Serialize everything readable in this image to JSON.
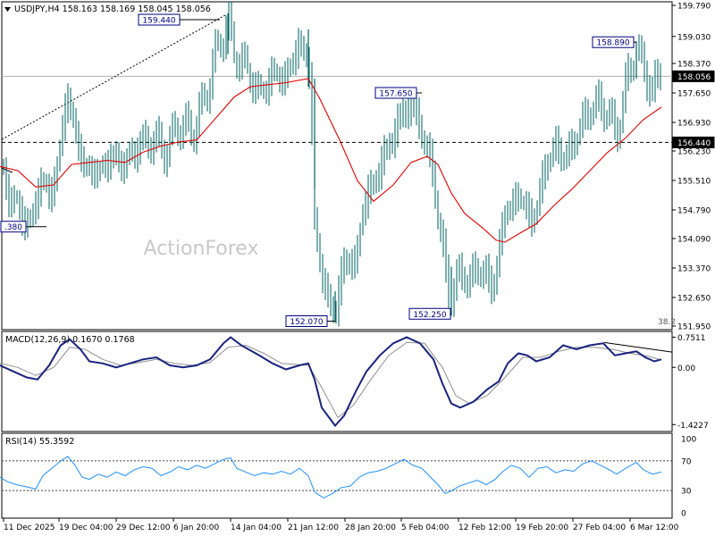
{
  "chart_data": {
    "type": "candlestick",
    "symbol_header": "USDJPY,H4  158.163 158.169 158.045 158.056",
    "watermark": "ActionForex",
    "colors": {
      "candles": "#006060",
      "ma": "#e00000",
      "macd_main": "#1a237e",
      "macd_signal": "#909090",
      "rsi": "#1e90ff",
      "grid": "#888888",
      "price_tag_bg": "#000080"
    },
    "price_axis": {
      "range": [
        151.95,
        159.79
      ],
      "ticks": [
        "159.790",
        "159.030",
        "158.370",
        "157.650",
        "156.930",
        "156.230",
        "155.510",
        "154.790",
        "154.090",
        "153.370",
        "152.650",
        "151.950"
      ],
      "current": "158.056",
      "current_value": 158.056,
      "level_line_label": "156.440",
      "level_line_value": 156.44
    },
    "annotations": [
      {
        "label": "159.440",
        "value": 159.44,
        "at": "14 Jan"
      },
      {
        "label": "158.890",
        "value": 158.89,
        "at": "5 Mar"
      },
      {
        "label": "157.650",
        "value": 157.65,
        "at": "5 Feb"
      },
      {
        "label": "152.070",
        "value": 152.07,
        "at": "23 Jan"
      },
      {
        "label": "152.250",
        "value": 152.25,
        "at": "12 Feb"
      },
      {
        "label": ".380",
        "value": 154.38,
        "at": "15 Dec"
      }
    ],
    "fib_label": "38.2",
    "trendline": {
      "from": [
        155.9,
        "11 Dec 2025"
      ],
      "to": [
        159.5,
        "14 Jan"
      ]
    },
    "x_ticks": [
      "11 Dec 2025",
      "19 Dec 04:00",
      "29 Dec 12:00",
      "6 Jan 20:00",
      "14 Jan 04:00",
      "21 Jan 12:00",
      "28 Jan 20:00",
      "5 Feb 04:00",
      "12 Feb 12:00",
      "19 Feb 20:00",
      "27 Feb 04:00",
      "6 Mar 12:00"
    ],
    "price_path": [
      [
        0,
        156.0
      ],
      [
        8,
        155.3
      ],
      [
        20,
        154.8
      ],
      [
        35,
        154.4
      ],
      [
        45,
        155.6
      ],
      [
        55,
        155.1
      ],
      [
        65,
        155.9
      ],
      [
        75,
        157.7
      ],
      [
        85,
        156.6
      ],
      [
        95,
        155.8
      ],
      [
        110,
        155.7
      ],
      [
        125,
        156.1
      ],
      [
        140,
        155.9
      ],
      [
        155,
        156.4
      ],
      [
        175,
        156.5
      ],
      [
        185,
        156.2
      ],
      [
        200,
        156.9
      ],
      [
        215,
        156.7
      ],
      [
        228,
        157.4
      ],
      [
        240,
        158.5
      ],
      [
        255,
        159.4
      ],
      [
        262,
        158.6
      ],
      [
        275,
        158.3
      ],
      [
        290,
        157.6
      ],
      [
        305,
        158.1
      ],
      [
        320,
        158.0
      ],
      [
        335,
        158.9
      ],
      [
        345,
        158.4
      ],
      [
        348,
        157.4
      ],
      [
        352,
        154.6
      ],
      [
        360,
        153.1
      ],
      [
        375,
        152.2
      ],
      [
        385,
        153.6
      ],
      [
        398,
        153.4
      ],
      [
        405,
        154.8
      ],
      [
        415,
        155.3
      ],
      [
        430,
        156.1
      ],
      [
        445,
        156.9
      ],
      [
        458,
        157.4
      ],
      [
        470,
        156.9
      ],
      [
        478,
        156.2
      ],
      [
        485,
        155.6
      ],
      [
        493,
        154.2
      ],
      [
        503,
        152.6
      ],
      [
        512,
        153.2
      ],
      [
        525,
        153.1
      ],
      [
        540,
        153.4
      ],
      [
        550,
        152.8
      ],
      [
        558,
        153.8
      ],
      [
        568,
        154.9
      ],
      [
        585,
        155.1
      ],
      [
        596,
        154.4
      ],
      [
        608,
        155.7
      ],
      [
        622,
        156.4
      ],
      [
        632,
        156.0
      ],
      [
        645,
        156.6
      ],
      [
        658,
        157.2
      ],
      [
        670,
        157.4
      ],
      [
        682,
        157.1
      ],
      [
        690,
        156.6
      ],
      [
        700,
        157.8
      ],
      [
        712,
        158.8
      ],
      [
        722,
        158.1
      ],
      [
        730,
        157.7
      ],
      [
        740,
        158.2
      ]
    ],
    "ma_path": [
      [
        0,
        155.85
      ],
      [
        20,
        155.75
      ],
      [
        40,
        155.35
      ],
      [
        60,
        155.4
      ],
      [
        80,
        155.9
      ],
      [
        100,
        155.95
      ],
      [
        120,
        156.0
      ],
      [
        140,
        155.95
      ],
      [
        160,
        156.2
      ],
      [
        180,
        156.35
      ],
      [
        200,
        156.45
      ],
      [
        220,
        156.5
      ],
      [
        240,
        157.0
      ],
      [
        262,
        157.55
      ],
      [
        280,
        157.8
      ],
      [
        300,
        157.85
      ],
      [
        320,
        157.9
      ],
      [
        345,
        158.0
      ],
      [
        358,
        157.5
      ],
      [
        380,
        156.5
      ],
      [
        400,
        155.5
      ],
      [
        418,
        155.0
      ],
      [
        440,
        155.4
      ],
      [
        460,
        155.95
      ],
      [
        478,
        156.1
      ],
      [
        490,
        155.9
      ],
      [
        505,
        155.2
      ],
      [
        520,
        154.7
      ],
      [
        540,
        154.35
      ],
      [
        555,
        154.05
      ],
      [
        565,
        154.0
      ],
      [
        580,
        154.2
      ],
      [
        600,
        154.45
      ],
      [
        620,
        154.9
      ],
      [
        640,
        155.3
      ],
      [
        660,
        155.75
      ],
      [
        680,
        156.2
      ],
      [
        700,
        156.55
      ],
      [
        720,
        157.0
      ],
      [
        740,
        157.3
      ]
    ],
    "macd": {
      "label": "MACD(12,26,9) 0.1670 0.1768",
      "range": [
        -1.55,
        0.85
      ],
      "ticks": [
        {
          "label": "0.7511",
          "value": 0.7511
        },
        {
          "label": "0.00",
          "value": 0
        },
        {
          "label": "-1.4227",
          "value": -1.4227
        }
      ],
      "main": [
        [
          0,
          0.05
        ],
        [
          15,
          -0.1
        ],
        [
          30,
          -0.25
        ],
        [
          42,
          -0.3
        ],
        [
          55,
          0.05
        ],
        [
          68,
          0.55
        ],
        [
          78,
          0.7
        ],
        [
          90,
          0.45
        ],
        [
          100,
          0.15
        ],
        [
          115,
          0.1
        ],
        [
          130,
          0.0
        ],
        [
          145,
          0.1
        ],
        [
          160,
          0.2
        ],
        [
          175,
          0.25
        ],
        [
          190,
          0.05
        ],
        [
          205,
          0.0
        ],
        [
          220,
          0.05
        ],
        [
          235,
          0.2
        ],
        [
          250,
          0.6
        ],
        [
          258,
          0.75
        ],
        [
          270,
          0.55
        ],
        [
          290,
          0.3
        ],
        [
          305,
          0.1
        ],
        [
          320,
          -0.05
        ],
        [
          335,
          0.05
        ],
        [
          345,
          0.1
        ],
        [
          352,
          -0.3
        ],
        [
          360,
          -1.0
        ],
        [
          375,
          -1.45
        ],
        [
          385,
          -1.2
        ],
        [
          398,
          -0.6
        ],
        [
          410,
          -0.1
        ],
        [
          425,
          0.3
        ],
        [
          440,
          0.6
        ],
        [
          455,
          0.75
        ],
        [
          470,
          0.6
        ],
        [
          485,
          0.2
        ],
        [
          495,
          -0.4
        ],
        [
          505,
          -0.9
        ],
        [
          515,
          -1.0
        ],
        [
          530,
          -0.85
        ],
        [
          545,
          -0.55
        ],
        [
          558,
          -0.35
        ],
        [
          568,
          0.1
        ],
        [
          580,
          0.35
        ],
        [
          590,
          0.3
        ],
        [
          600,
          0.15
        ],
        [
          615,
          0.25
        ],
        [
          630,
          0.55
        ],
        [
          645,
          0.45
        ],
        [
          660,
          0.55
        ],
        [
          675,
          0.6
        ],
        [
          688,
          0.3
        ],
        [
          700,
          0.35
        ],
        [
          712,
          0.4
        ],
        [
          722,
          0.25
        ],
        [
          732,
          0.15
        ],
        [
          740,
          0.2
        ]
      ],
      "signal": [
        [
          0,
          0.1
        ],
        [
          20,
          0.0
        ],
        [
          40,
          -0.2
        ],
        [
          60,
          0.0
        ],
        [
          78,
          0.5
        ],
        [
          95,
          0.45
        ],
        [
          115,
          0.2
        ],
        [
          135,
          0.05
        ],
        [
          155,
          0.12
        ],
        [
          175,
          0.2
        ],
        [
          195,
          0.1
        ],
        [
          215,
          0.05
        ],
        [
          235,
          0.12
        ],
        [
          255,
          0.5
        ],
        [
          275,
          0.55
        ],
        [
          295,
          0.35
        ],
        [
          315,
          0.1
        ],
        [
          345,
          0.05
        ],
        [
          360,
          -0.5
        ],
        [
          378,
          -1.25
        ],
        [
          395,
          -0.95
        ],
        [
          415,
          -0.3
        ],
        [
          435,
          0.3
        ],
        [
          455,
          0.62
        ],
        [
          475,
          0.6
        ],
        [
          495,
          0.0
        ],
        [
          510,
          -0.7
        ],
        [
          525,
          -0.9
        ],
        [
          545,
          -0.7
        ],
        [
          565,
          -0.25
        ],
        [
          585,
          0.25
        ],
        [
          605,
          0.25
        ],
        [
          625,
          0.4
        ],
        [
          645,
          0.5
        ],
        [
          665,
          0.5
        ],
        [
          685,
          0.45
        ],
        [
          705,
          0.35
        ],
        [
          725,
          0.28
        ],
        [
          740,
          0.18
        ]
      ],
      "trendline": [
        [
          676,
          0.62
        ],
        [
          752,
          0.38
        ]
      ]
    },
    "rsi": {
      "label": "RSI(14) 55.3592",
      "range": [
        0,
        100
      ],
      "ticks": [
        {
          "label": "100",
          "value": 100
        },
        {
          "label": "70",
          "value": 70
        },
        {
          "label": "30",
          "value": 30
        },
        {
          "label": "0",
          "value": 0
        }
      ],
      "levels": [
        70,
        30
      ],
      "values": [
        [
          0,
          48
        ],
        [
          8,
          42
        ],
        [
          18,
          38
        ],
        [
          30,
          35
        ],
        [
          40,
          32
        ],
        [
          48,
          50
        ],
        [
          58,
          60
        ],
        [
          68,
          70
        ],
        [
          76,
          76
        ],
        [
          84,
          64
        ],
        [
          92,
          48
        ],
        [
          100,
          45
        ],
        [
          110,
          52
        ],
        [
          120,
          48
        ],
        [
          130,
          55
        ],
        [
          140,
          50
        ],
        [
          150,
          58
        ],
        [
          160,
          62
        ],
        [
          170,
          60
        ],
        [
          180,
          50
        ],
        [
          190,
          55
        ],
        [
          200,
          62
        ],
        [
          210,
          58
        ],
        [
          220,
          64
        ],
        [
          230,
          60
        ],
        [
          240,
          66
        ],
        [
          250,
          72
        ],
        [
          258,
          74
        ],
        [
          265,
          60
        ],
        [
          275,
          55
        ],
        [
          285,
          50
        ],
        [
          295,
          54
        ],
        [
          305,
          52
        ],
        [
          315,
          56
        ],
        [
          325,
          52
        ],
        [
          335,
          60
        ],
        [
          345,
          50
        ],
        [
          352,
          28
        ],
        [
          362,
          20
        ],
        [
          372,
          26
        ],
        [
          382,
          34
        ],
        [
          392,
          36
        ],
        [
          402,
          48
        ],
        [
          412,
          54
        ],
        [
          422,
          56
        ],
        [
          432,
          60
        ],
        [
          442,
          66
        ],
        [
          452,
          72
        ],
        [
          462,
          64
        ],
        [
          472,
          60
        ],
        [
          480,
          50
        ],
        [
          490,
          38
        ],
        [
          498,
          26
        ],
        [
          506,
          30
        ],
        [
          514,
          36
        ],
        [
          524,
          40
        ],
        [
          534,
          44
        ],
        [
          544,
          38
        ],
        [
          554,
          45
        ],
        [
          562,
          55
        ],
        [
          572,
          64
        ],
        [
          582,
          60
        ],
        [
          592,
          48
        ],
        [
          602,
          60
        ],
        [
          612,
          62
        ],
        [
          622,
          54
        ],
        [
          632,
          58
        ],
        [
          642,
          56
        ],
        [
          652,
          66
        ],
        [
          662,
          70
        ],
        [
          672,
          64
        ],
        [
          682,
          58
        ],
        [
          690,
          52
        ],
        [
          700,
          60
        ],
        [
          712,
          68
        ],
        [
          720,
          58
        ],
        [
          730,
          52
        ],
        [
          740,
          55
        ]
      ]
    }
  }
}
